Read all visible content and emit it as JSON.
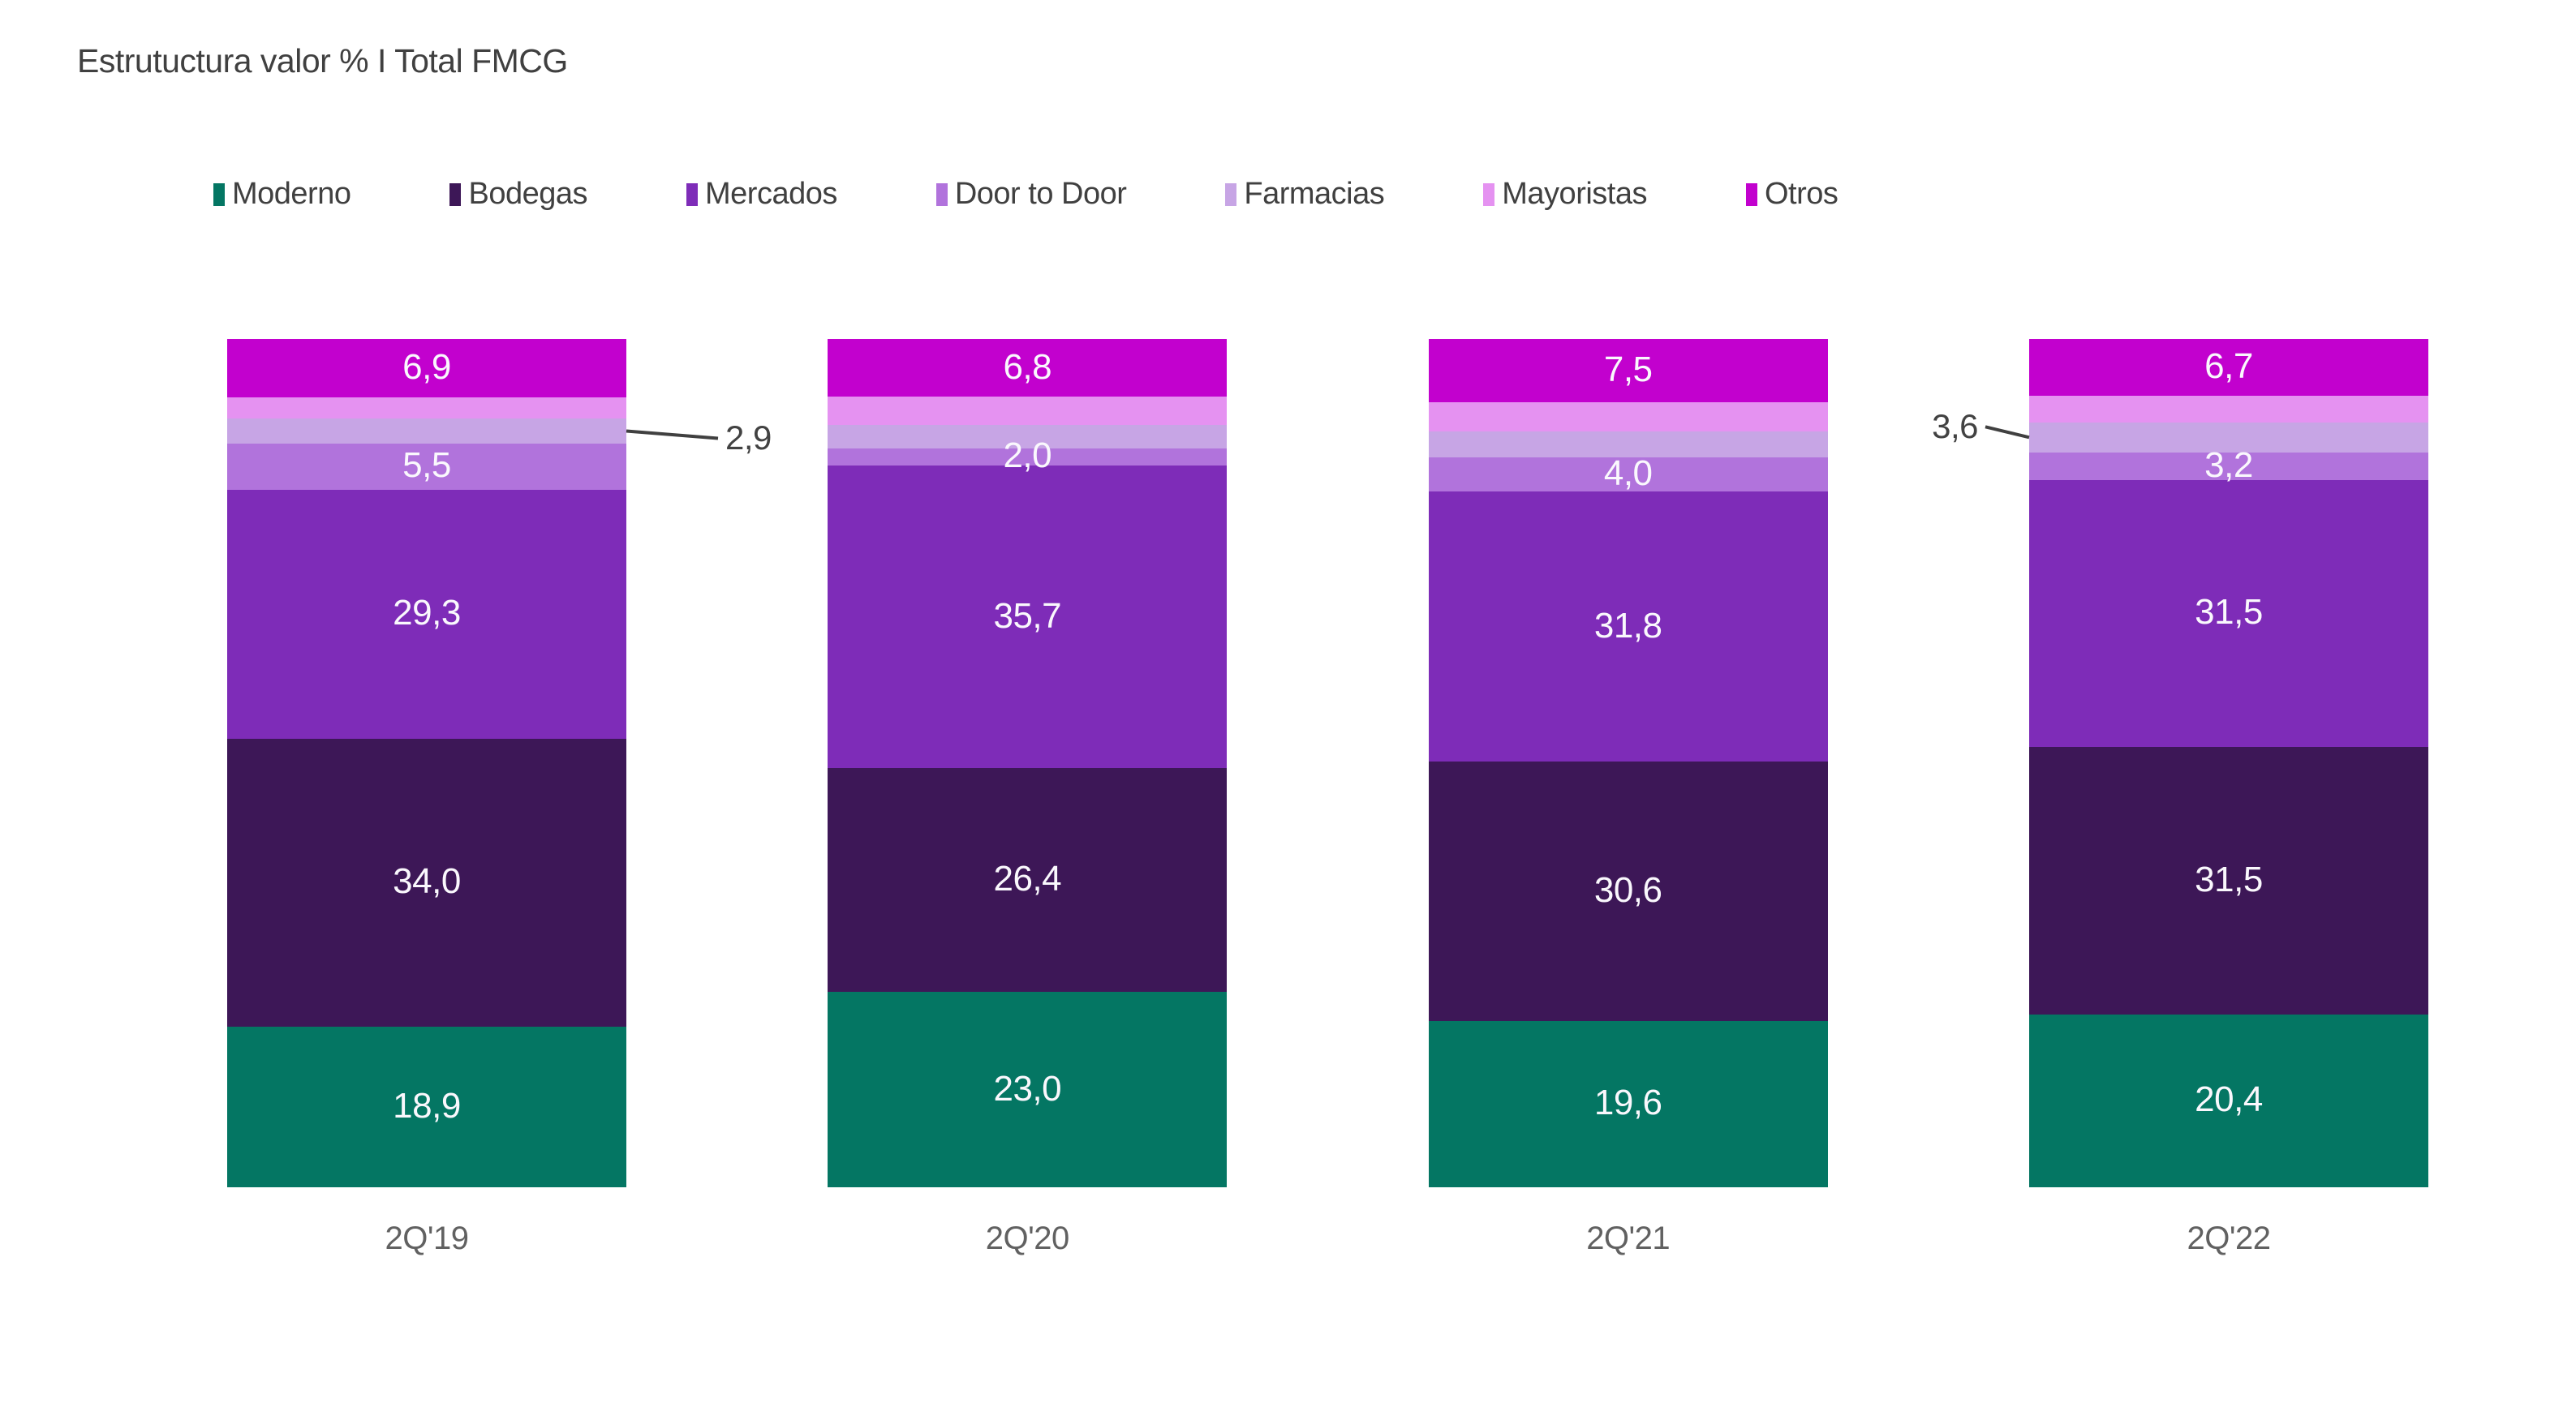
{
  "title": "Estrutuctura valor % I Total FMCG",
  "text_colors": {
    "title": "#404040",
    "legend": "#404040",
    "bar_labels": "#faf8fd",
    "axis_labels": "#616161",
    "callout": "#424242",
    "callout_line": "#404040"
  },
  "chart_data": {
    "type": "bar",
    "stacked": true,
    "orientation": "vertical",
    "title": "Estrutuctura valor % I Total FMCG",
    "unit": "%",
    "value_format": "decimal-comma",
    "ylim": [
      0,
      100
    ],
    "gridlines": false,
    "legend_position": "top",
    "categories": [
      "2Q'19",
      "2Q'20",
      "2Q'21",
      "2Q'22"
    ],
    "series": [
      {
        "name": "Moderno",
        "color": "#047663",
        "values": [
          18.9,
          23.0,
          19.6,
          20.4
        ],
        "labels": [
          "18,9",
          "23,0",
          "19,6",
          "20,4"
        ]
      },
      {
        "name": "Bodegas",
        "color": "#3d1757",
        "values": [
          34.0,
          26.4,
          30.6,
          31.5
        ],
        "labels": [
          "34,0",
          "26,4",
          "30,6",
          "31,5"
        ]
      },
      {
        "name": "Mercados",
        "color": "#7e2cb8",
        "values": [
          29.3,
          35.7,
          31.8,
          31.5
        ],
        "labels": [
          "29,3",
          "35,7",
          "31,8",
          "31,5"
        ]
      },
      {
        "name": "Door to Door",
        "color": "#b173dc",
        "values": [
          5.5,
          2.0,
          4.0,
          3.2
        ],
        "labels": [
          "5,5",
          "2,0",
          "4,0",
          "3,2"
        ]
      },
      {
        "name": "Farmacias",
        "color": "#c7a5e5",
        "values": [
          2.9,
          2.8,
          3.1,
          3.6
        ],
        "labels": [
          "",
          "",
          "",
          ""
        ]
      },
      {
        "name": "Mayoristas",
        "color": "#e592f1",
        "values": [
          2.5,
          3.3,
          3.4,
          3.1
        ],
        "labels": [
          "",
          "",
          "",
          ""
        ]
      },
      {
        "name": "Otros",
        "color": "#c201ce",
        "values": [
          6.9,
          6.8,
          7.5,
          6.7
        ],
        "labels": [
          "6,9",
          "6,8",
          "7,5",
          "6,7"
        ]
      }
    ],
    "callouts": [
      {
        "label": "2,9",
        "series": "Farmacias",
        "category": "2Q'19",
        "side": "right"
      },
      {
        "label": "3,6",
        "series": "Farmacias",
        "category": "2Q'22",
        "side": "left"
      }
    ]
  }
}
